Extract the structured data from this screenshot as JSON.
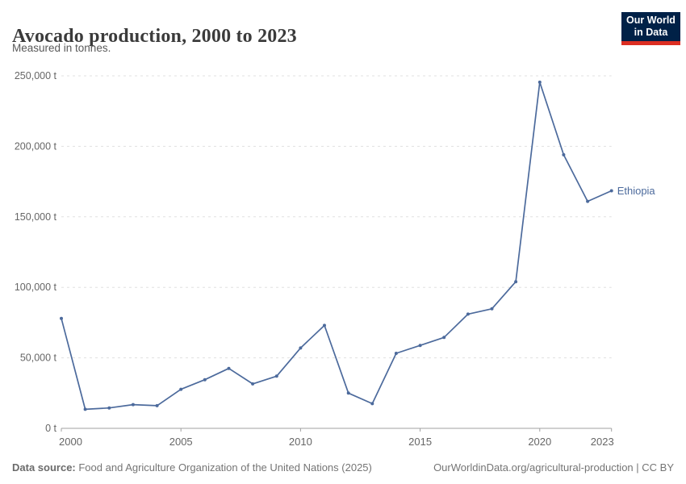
{
  "header": {
    "title": "Avocado production, 2000 to 2023",
    "subtitle": "Measured in tonnes."
  },
  "logo": {
    "line1": "Our World",
    "line2": "in Data"
  },
  "chart_data": {
    "type": "line",
    "title": "Avocado production, 2000 to 2023",
    "unit": "tonnes",
    "xlabel": "",
    "ylabel": "",
    "xlim": [
      2000,
      2023
    ],
    "ylim": [
      0,
      250000
    ],
    "grid": true,
    "legend_position": "end-of-line-label",
    "color": "#4c6a9c",
    "y_ticks": [
      {
        "value": 0,
        "label": "0 t"
      },
      {
        "value": 50000,
        "label": "50,000 t"
      },
      {
        "value": 100000,
        "label": "100,000 t"
      },
      {
        "value": 150000,
        "label": "150,000 t"
      },
      {
        "value": 200000,
        "label": "200,000 t"
      },
      {
        "value": 250000,
        "label": "250,000 t"
      }
    ],
    "x_ticks": [
      {
        "year": 2000,
        "label": "2000",
        "align": "start"
      },
      {
        "year": 2005,
        "label": "2005",
        "align": "middle"
      },
      {
        "year": 2010,
        "label": "2010",
        "align": "middle"
      },
      {
        "year": 2015,
        "label": "2015",
        "align": "middle"
      },
      {
        "year": 2020,
        "label": "2020",
        "align": "middle"
      },
      {
        "year": 2023,
        "label": "2023",
        "align": "end"
      }
    ],
    "series": [
      {
        "name": "Ethiopia",
        "x": [
          2000,
          2001,
          2002,
          2003,
          2004,
          2005,
          2006,
          2007,
          2008,
          2009,
          2010,
          2011,
          2012,
          2013,
          2014,
          2015,
          2016,
          2017,
          2018,
          2019,
          2020,
          2021,
          2022,
          2023
        ],
        "values": [
          78000,
          13500,
          14500,
          16800,
          16100,
          27700,
          34500,
          42500,
          31500,
          37000,
          57000,
          73000,
          25000,
          17500,
          53200,
          58800,
          64500,
          81000,
          84800,
          104000,
          245500,
          194000,
          161000,
          168500
        ]
      }
    ]
  },
  "footer": {
    "datasource_label": "Data source:",
    "datasource_text": " Food and Agriculture Organization of the United Nations (2025)",
    "link": "OurWorldinData.org/agricultural-production | CC BY"
  },
  "colors": {
    "line": "#4c6a9c",
    "logo_bg": "#002147",
    "logo_bar": "#dc2e22",
    "grid": "#e0e0e0",
    "axis": "#a1a1a1",
    "muted_text": "#666666"
  }
}
